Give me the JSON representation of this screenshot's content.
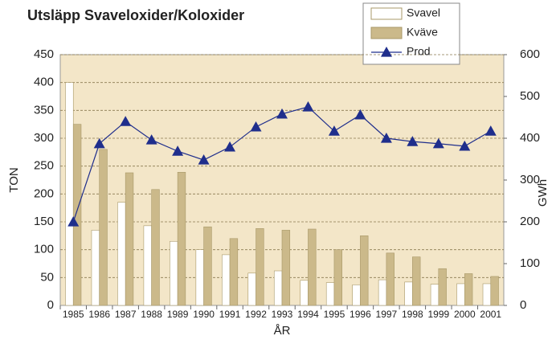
{
  "chart_data": {
    "type": "bar-line",
    "title": "Utsläpp Svaveloxider/Koloxider",
    "categories": [
      "1985",
      "1986",
      "1987",
      "1988",
      "1989",
      "1990",
      "1991",
      "1992",
      "1993",
      "1994",
      "1995",
      "1996",
      "1997",
      "1998",
      "1999",
      "2000",
      "2001"
    ],
    "series": [
      {
        "name": "Svavel",
        "color": "#ffffff",
        "values": [
          400,
          135,
          185,
          143,
          115,
          100,
          91,
          58,
          62,
          45,
          41,
          37,
          46,
          42,
          38,
          39,
          39
        ]
      },
      {
        "name": "Kväve",
        "color": "#cbb98a",
        "values": [
          325,
          280,
          238,
          208,
          239,
          141,
          120,
          138,
          135,
          137,
          100,
          125,
          94,
          87,
          66,
          57,
          52
        ]
      },
      {
        "name": "Prod",
        "color": "#1f2e8c",
        "axis": "y2",
        "values": [
          200,
          387,
          440,
          396,
          369,
          348,
          379,
          427,
          458,
          475,
          417,
          456,
          400,
          392,
          387,
          381,
          417
        ]
      }
    ],
    "xlabel": "ÅR",
    "ylabel": "TON",
    "y2label": "GWh",
    "ylim": [
      0,
      450
    ],
    "yticks": [
      0,
      50,
      100,
      150,
      200,
      250,
      300,
      350,
      400,
      450
    ],
    "y2lim": [
      0,
      600
    ],
    "y2ticks": [
      0,
      100,
      200,
      300,
      400,
      500,
      600
    ],
    "grid": true,
    "legend": "top-right"
  }
}
